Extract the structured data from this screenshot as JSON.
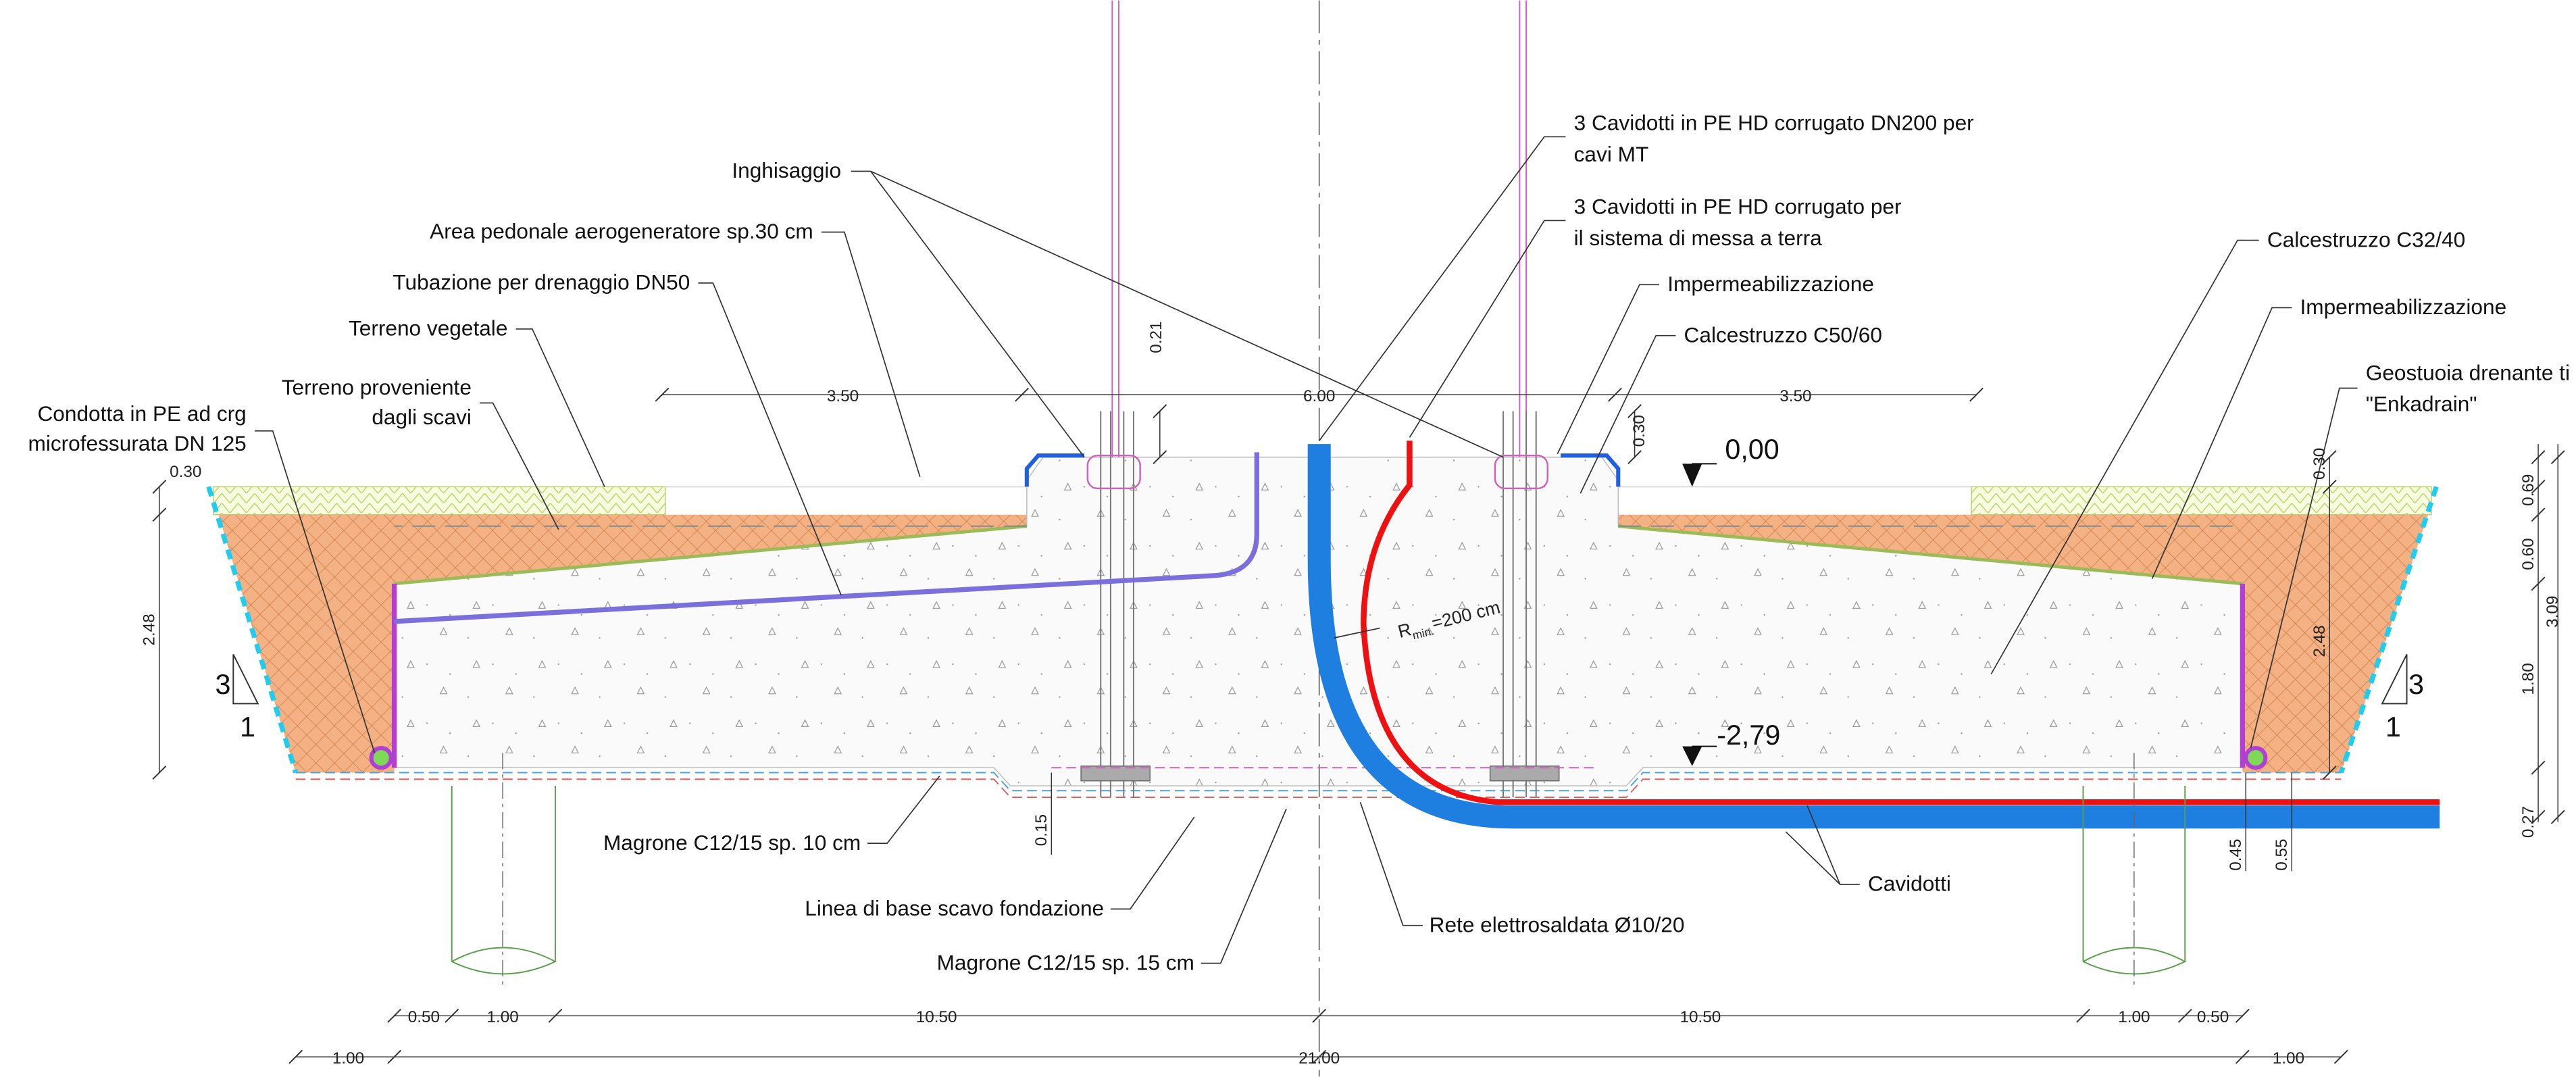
{
  "callouts": [
    {
      "lines": [
        "Inghisaggio"
      ]
    },
    {
      "lines": [
        "Area pedonale aerogeneratore sp.30 cm"
      ]
    },
    {
      "lines": [
        "Tubazione per drenaggio DN50"
      ]
    },
    {
      "lines": [
        "Terreno vegetale"
      ]
    },
    {
      "lines": [
        "Terreno proveniente",
        "dagli scavi"
      ]
    },
    {
      "lines": [
        "Condotta in PE ad crg",
        "microfessurata DN 125"
      ]
    },
    {
      "lines": [
        "3 Cavidotti in PE HD corrugato DN200 per",
        "cavi MT"
      ]
    },
    {
      "lines": [
        "3 Cavidotti in PE HD corrugato  per",
        "il sistema di messa a terra"
      ]
    },
    {
      "lines": [
        "Impermeabilizzazione"
      ]
    },
    {
      "lines": [
        "Calcestruzzo C50/60"
      ]
    },
    {
      "lines": [
        "Calcestruzzo C32/40"
      ]
    },
    {
      "lines": [
        "Impermeabilizzazione"
      ]
    },
    {
      "lines": [
        "Geostuoia drenante ti",
        "\"Enkadrain\""
      ]
    },
    {
      "lines": [
        "Magrone C12/15 sp. 10 cm"
      ]
    },
    {
      "lines": [
        "Linea di base scavo fondazione"
      ]
    },
    {
      "lines": [
        "Magrone C12/15 sp. 15 cm"
      ]
    },
    {
      "lines": [
        "Rete elettrosaldata Ø10/20"
      ]
    },
    {
      "lines": [
        "Cavidotti"
      ]
    }
  ],
  "levels": [
    "0,00",
    "-2,79"
  ],
  "slopes": [
    "3",
    "1",
    "3",
    "1"
  ],
  "radius": {
    "symbol": "R",
    "subscript": "min.",
    "value": "=200 cm"
  },
  "dimensions": {
    "top": [
      "3.50",
      "6.00",
      "3.50"
    ],
    "vertical": [
      "0.21",
      "0.30",
      "0.30",
      "2.48",
      "0.30",
      "2.48",
      "0.69",
      "0.60",
      "1.80",
      "0.27",
      "3.09",
      "0.15",
      "0.45",
      "0.55"
    ],
    "bottom": [
      "0.50",
      "1.00",
      "10.50",
      "10.50",
      "1.00",
      "0.50"
    ],
    "overall": [
      "1.00",
      "21.00",
      "1.00"
    ]
  }
}
